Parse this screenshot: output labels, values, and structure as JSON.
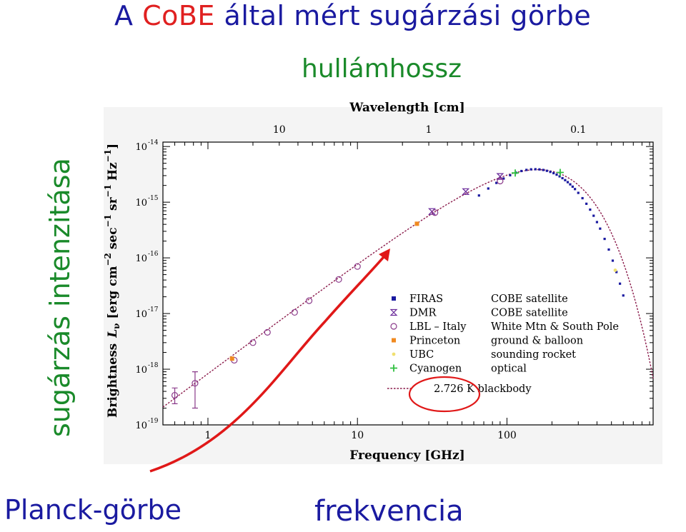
{
  "slide": {
    "title_prefix": "A ",
    "title_cobe": "CoBE",
    "title_rest": " által mért sugárzási görbe",
    "top_axis_annotation": "hullámhossz",
    "left_axis_annotation": "sugárzás intenzitása",
    "bottom_left_annotation": "Planck-görbe",
    "bottom_axis_annotation": "frekvencia"
  },
  "colors": {
    "title_blue": "#1a1aa0",
    "title_red": "#e02020",
    "annotation_green": "#1a8a2a",
    "annotation_red": "#e01818",
    "curve": "#8a1a4a",
    "firas": "#1a1aa0",
    "dmr": "#6a2a9a",
    "lbl": "#8a3a8a",
    "princeton": "#f08a20",
    "ubc": "#f0e070",
    "cyanogen": "#30c040"
  },
  "chart_data": {
    "type": "scatter",
    "xlabel": "Frequency [GHz]",
    "ylabel": "Brightness L_ν [erg cm⁻² sec⁻¹ sr⁻¹ Hz⁻¹]",
    "ylabel_parts": {
      "word": "Brightness",
      "symbol": "L",
      "sub": "ν",
      "units_open": "[erg cm",
      "exp1": "−2",
      "sec": "sec",
      "exp2": "−1",
      "sr": "sr",
      "exp3": "−1",
      "hz": "Hz",
      "exp4": "−1",
      "units_close": "]"
    },
    "top_axis_label": "Wavelength [cm]",
    "x_scale": "log",
    "y_scale": "log",
    "xlim": [
      0.5,
      950
    ],
    "ylim": [
      1e-19,
      1.2e-14
    ],
    "x_ticks": [
      "1",
      "10",
      "100"
    ],
    "x_tick_values": [
      1,
      10,
      100
    ],
    "top_ticks": [
      "10",
      "1",
      "0.1"
    ],
    "top_tick_values_cm": [
      10,
      1,
      0.1
    ],
    "y_ticks": [
      "10",
      "10",
      "10",
      "10",
      "10",
      "10"
    ],
    "y_tick_exponents": [
      "-14",
      "-15",
      "-16",
      "-17",
      "-18",
      "-19"
    ],
    "y_tick_values": [
      1e-14,
      1e-15,
      1e-16,
      1e-17,
      1e-18,
      1e-19
    ],
    "grid": false,
    "legend_position": "lower-right",
    "temperature_K": 2.726,
    "series": [
      {
        "name": "FIRAS",
        "source": "COBE satellite",
        "marker": "square-small",
        "x": [
          65,
          75,
          85,
          95,
          105,
          115,
          125,
          135,
          145,
          155,
          165,
          175,
          185,
          195,
          205,
          215,
          225,
          235,
          245,
          255,
          265,
          275,
          285,
          300,
          320,
          340,
          360,
          380,
          400,
          420,
          450,
          480,
          510,
          540,
          570,
          600
        ],
        "y": [
          1.32e-15,
          1.76e-15,
          2.22e-15,
          2.66e-15,
          3.05e-15,
          3.38e-15,
          3.63e-15,
          3.8e-15,
          3.89e-15,
          3.91e-15,
          3.88e-15,
          3.79e-15,
          3.66e-15,
          3.5e-15,
          3.32e-15,
          3.12e-15,
          2.91e-15,
          2.7e-15,
          2.49e-15,
          2.29e-15,
          2.09e-15,
          1.9e-15,
          1.72e-15,
          1.47e-15,
          1.18e-15,
          9.37e-16,
          7.35e-16,
          5.71e-16,
          4.39e-16,
          3.35e-16,
          2.19e-16,
          1.41e-16,
          8.91e-17,
          5.56e-17,
          3.44e-17,
          2.11e-17
        ]
      },
      {
        "name": "DMR",
        "source": "COBE satellite",
        "marker": "hourglass",
        "x": [
          31.5,
          53,
          90
        ],
        "y": [
          6.8e-16,
          1.55e-15,
          2.9e-15
        ]
      },
      {
        "name": "LBL – Italy",
        "source": "White Mtn & South Pole",
        "marker": "circle",
        "x": [
          0.6,
          0.82,
          1.5,
          2.0,
          2.5,
          3.8,
          4.75,
          7.5,
          10,
          33,
          90
        ],
        "y": [
          3.4e-19,
          5.6e-19,
          1.45e-18,
          3e-18,
          4.6e-18,
          1.05e-17,
          1.7e-17,
          4.1e-17,
          7e-17,
          6.5e-16,
          2.4e-15
        ],
        "yerr_low": [
          2.4e-19,
          2e-19,
          0,
          0,
          0,
          0,
          0,
          0,
          0,
          0,
          0
        ],
        "yerr_high": [
          4.6e-19,
          9e-19,
          0,
          0,
          0,
          0,
          0,
          0,
          0,
          0,
          0
        ]
      },
      {
        "name": "Princeton",
        "source": "ground & balloon",
        "marker": "square",
        "x": [
          1.45,
          25
        ],
        "y": [
          1.55e-18,
          4.1e-16
        ]
      },
      {
        "name": "UBC",
        "source": "sounding rocket",
        "marker": "dot",
        "x": [
          530
        ],
        "y": [
          6e-17
        ]
      },
      {
        "name": "Cyanogen",
        "source": "optical",
        "marker": "plus",
        "x": [
          113.6,
          227
        ],
        "y": [
          3.35e-15,
          3.42e-15
        ]
      }
    ],
    "curve": {
      "name": "2.726 K blackbody",
      "style": "dotted"
    }
  }
}
